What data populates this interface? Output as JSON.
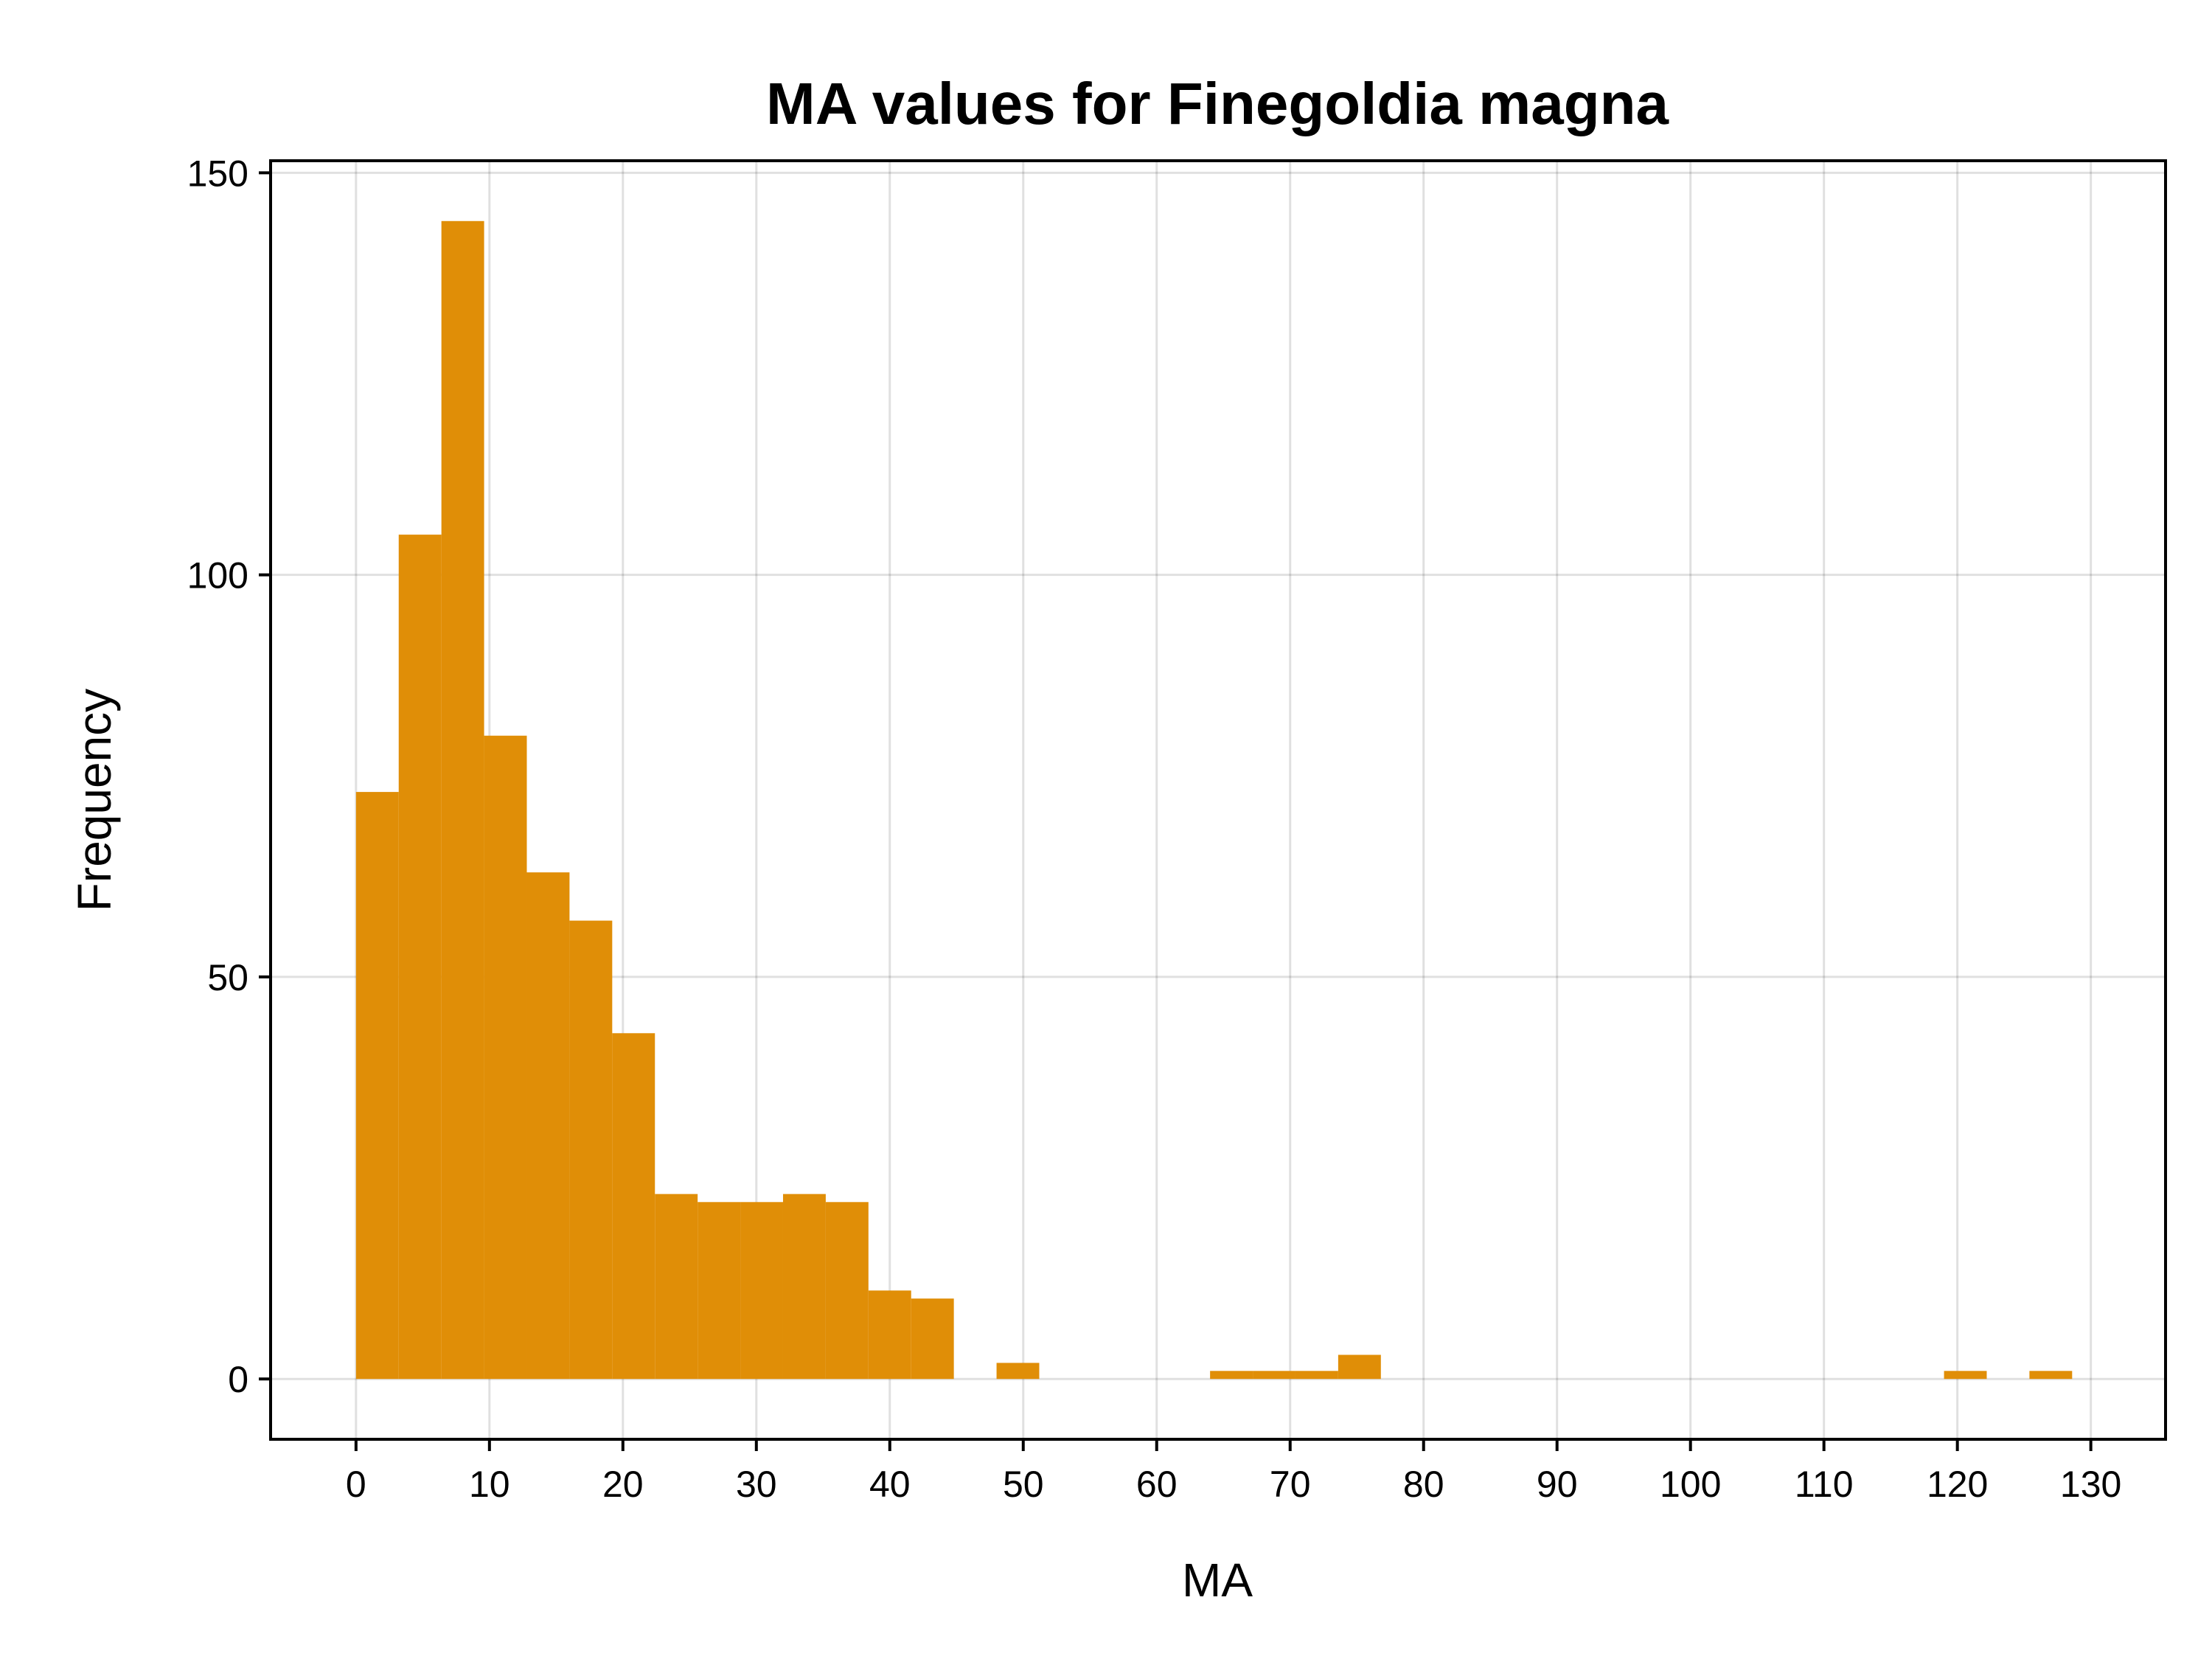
{
  "chart_data": {
    "type": "histogram",
    "title": "MA values for Finegoldia magna",
    "xlabel": "MA",
    "ylabel": "Frequency",
    "xlim": [
      -6.4,
      135.6
    ],
    "ylim": [
      -7.5,
      151.5
    ],
    "xticks": [
      0,
      10,
      20,
      30,
      40,
      50,
      60,
      70,
      80,
      90,
      100,
      110,
      120,
      130
    ],
    "yticks": [
      0,
      50,
      100,
      150
    ],
    "grid": true,
    "bar_color": "#e08e07",
    "bins": [
      {
        "x0": 0.0,
        "x1": 3.2,
        "count": 73
      },
      {
        "x0": 3.2,
        "x1": 6.4,
        "count": 105
      },
      {
        "x0": 6.4,
        "x1": 9.6,
        "count": 144
      },
      {
        "x0": 9.6,
        "x1": 12.8,
        "count": 80
      },
      {
        "x0": 12.8,
        "x1": 16.0,
        "count": 63
      },
      {
        "x0": 16.0,
        "x1": 19.2,
        "count": 57
      },
      {
        "x0": 19.2,
        "x1": 22.4,
        "count": 43
      },
      {
        "x0": 22.4,
        "x1": 25.6,
        "count": 23
      },
      {
        "x0": 25.6,
        "x1": 28.8,
        "count": 22
      },
      {
        "x0": 28.8,
        "x1": 32.0,
        "count": 22
      },
      {
        "x0": 32.0,
        "x1": 35.2,
        "count": 23
      },
      {
        "x0": 35.2,
        "x1": 38.4,
        "count": 22
      },
      {
        "x0": 38.4,
        "x1": 41.6,
        "count": 11
      },
      {
        "x0": 41.6,
        "x1": 44.8,
        "count": 10
      },
      {
        "x0": 48.0,
        "x1": 51.2,
        "count": 2
      },
      {
        "x0": 64.0,
        "x1": 67.2,
        "count": 1
      },
      {
        "x0": 67.2,
        "x1": 70.4,
        "count": 1
      },
      {
        "x0": 70.4,
        "x1": 73.6,
        "count": 1
      },
      {
        "x0": 73.6,
        "x1": 76.8,
        "count": 3
      },
      {
        "x0": 119.0,
        "x1": 122.2,
        "count": 1
      },
      {
        "x0": 125.4,
        "x1": 128.6,
        "count": 1
      }
    ]
  }
}
